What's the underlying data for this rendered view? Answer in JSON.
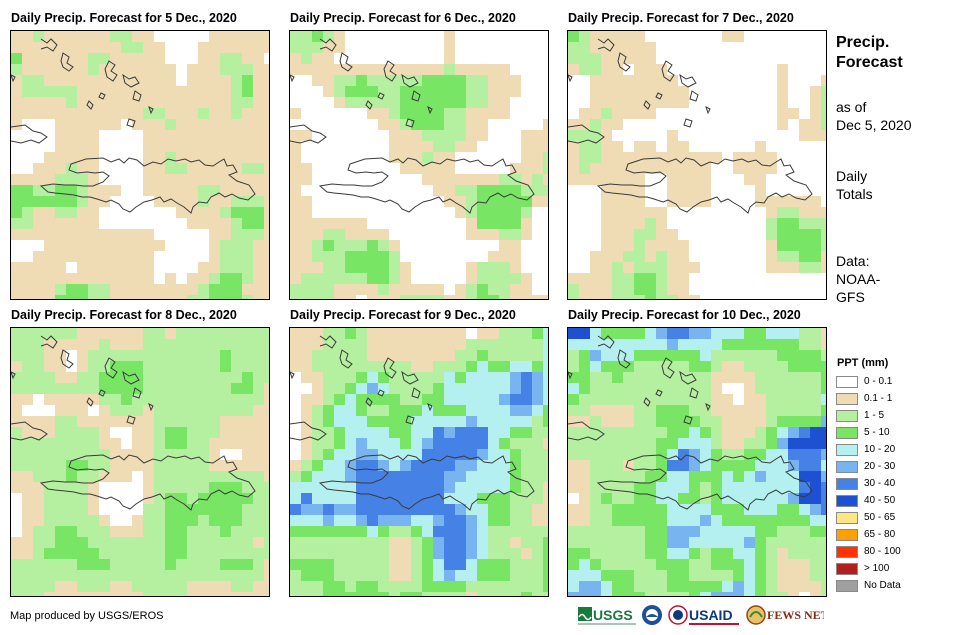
{
  "panels": [
    {
      "title": "Daily Precip. Forecast for 5 Dec., 2020"
    },
    {
      "title": "Daily Precip. Forecast for 6 Dec., 2020"
    },
    {
      "title": "Daily Precip. Forecast for 7 Dec., 2020"
    },
    {
      "title": "Daily Precip. Forecast for 8 Dec., 2020"
    },
    {
      "title": "Daily Precip. Forecast for 9 Dec., 2020"
    },
    {
      "title": "Daily Precip. Forecast for 10 Dec., 2020"
    }
  ],
  "sidebar": {
    "title_line1": "Precip.",
    "title_line2": "Forecast",
    "asof_line1": "as of",
    "asof_line2": "Dec 5, 2020",
    "totals_line1": "Daily",
    "totals_line2": "Totals",
    "data_line1": "Data:",
    "data_line2": "NOAA-",
    "data_line3": "GFS"
  },
  "legend": {
    "title": "PPT (mm)",
    "items": [
      {
        "label": "0 - 0.1",
        "color": "#ffffff"
      },
      {
        "label": "0.1 - 1",
        "color": "#f0dcb4"
      },
      {
        "label": "1 - 5",
        "color": "#b4f0a0"
      },
      {
        "label": "5 - 10",
        "color": "#78e664"
      },
      {
        "label": "10 - 20",
        "color": "#b4f0f0"
      },
      {
        "label": "20 - 30",
        "color": "#78b4f0"
      },
      {
        "label": "30 - 40",
        "color": "#4682e6"
      },
      {
        "label": "40 - 50",
        "color": "#1e50d2"
      },
      {
        "label": "50 - 65",
        "color": "#ffe682"
      },
      {
        "label": "65 - 80",
        "color": "#ffa000"
      },
      {
        "label": "80 - 100",
        "color": "#ff3200"
      },
      {
        "label": "> 100",
        "color": "#b41e1e"
      },
      {
        "label": "No Data",
        "color": "#a0a0a0"
      }
    ]
  },
  "footer": {
    "credit": "Map produced by USGS/EROS",
    "logos": [
      "USGS",
      "NOAA",
      "USAID",
      "FEWS NET"
    ]
  }
}
